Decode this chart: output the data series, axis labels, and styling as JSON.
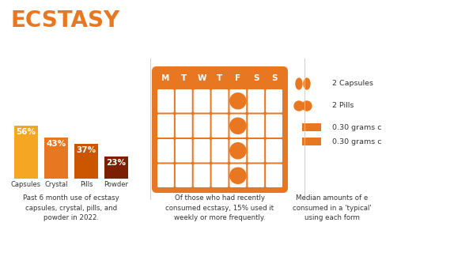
{
  "title": "ECSTASY",
  "title_color": "#E87722",
  "bg_color": "#FFFFFF",
  "bar_categories": [
    "Capsules",
    "Crystal",
    "Pills",
    "Powder"
  ],
  "bar_values": [
    56,
    43,
    37,
    23
  ],
  "bar_colors": [
    "#F5A623",
    "#E87722",
    "#CC5500",
    "#7B2000"
  ],
  "bar_caption": "Past 6 month use of ecstasy\ncapsules, crystal, pills, and\npowder in 2022.",
  "calendar_color": "#E87722",
  "calendar_days": [
    "M",
    "T",
    "W",
    "T",
    "F",
    "S",
    "S"
  ],
  "calendar_caption": "Of those who had recently\nconsumed ecstasy, 15% used it\nweekly or more frequently.",
  "legend_labels": [
    "2 Capsules",
    "2 Pills",
    "0.30 grams c",
    "0.30 grams c"
  ],
  "legend_caption": "Median amounts of e\nconsumed in a 'typical'\nusing each form",
  "orange": "#E87722",
  "light_orange": "#F5A623"
}
